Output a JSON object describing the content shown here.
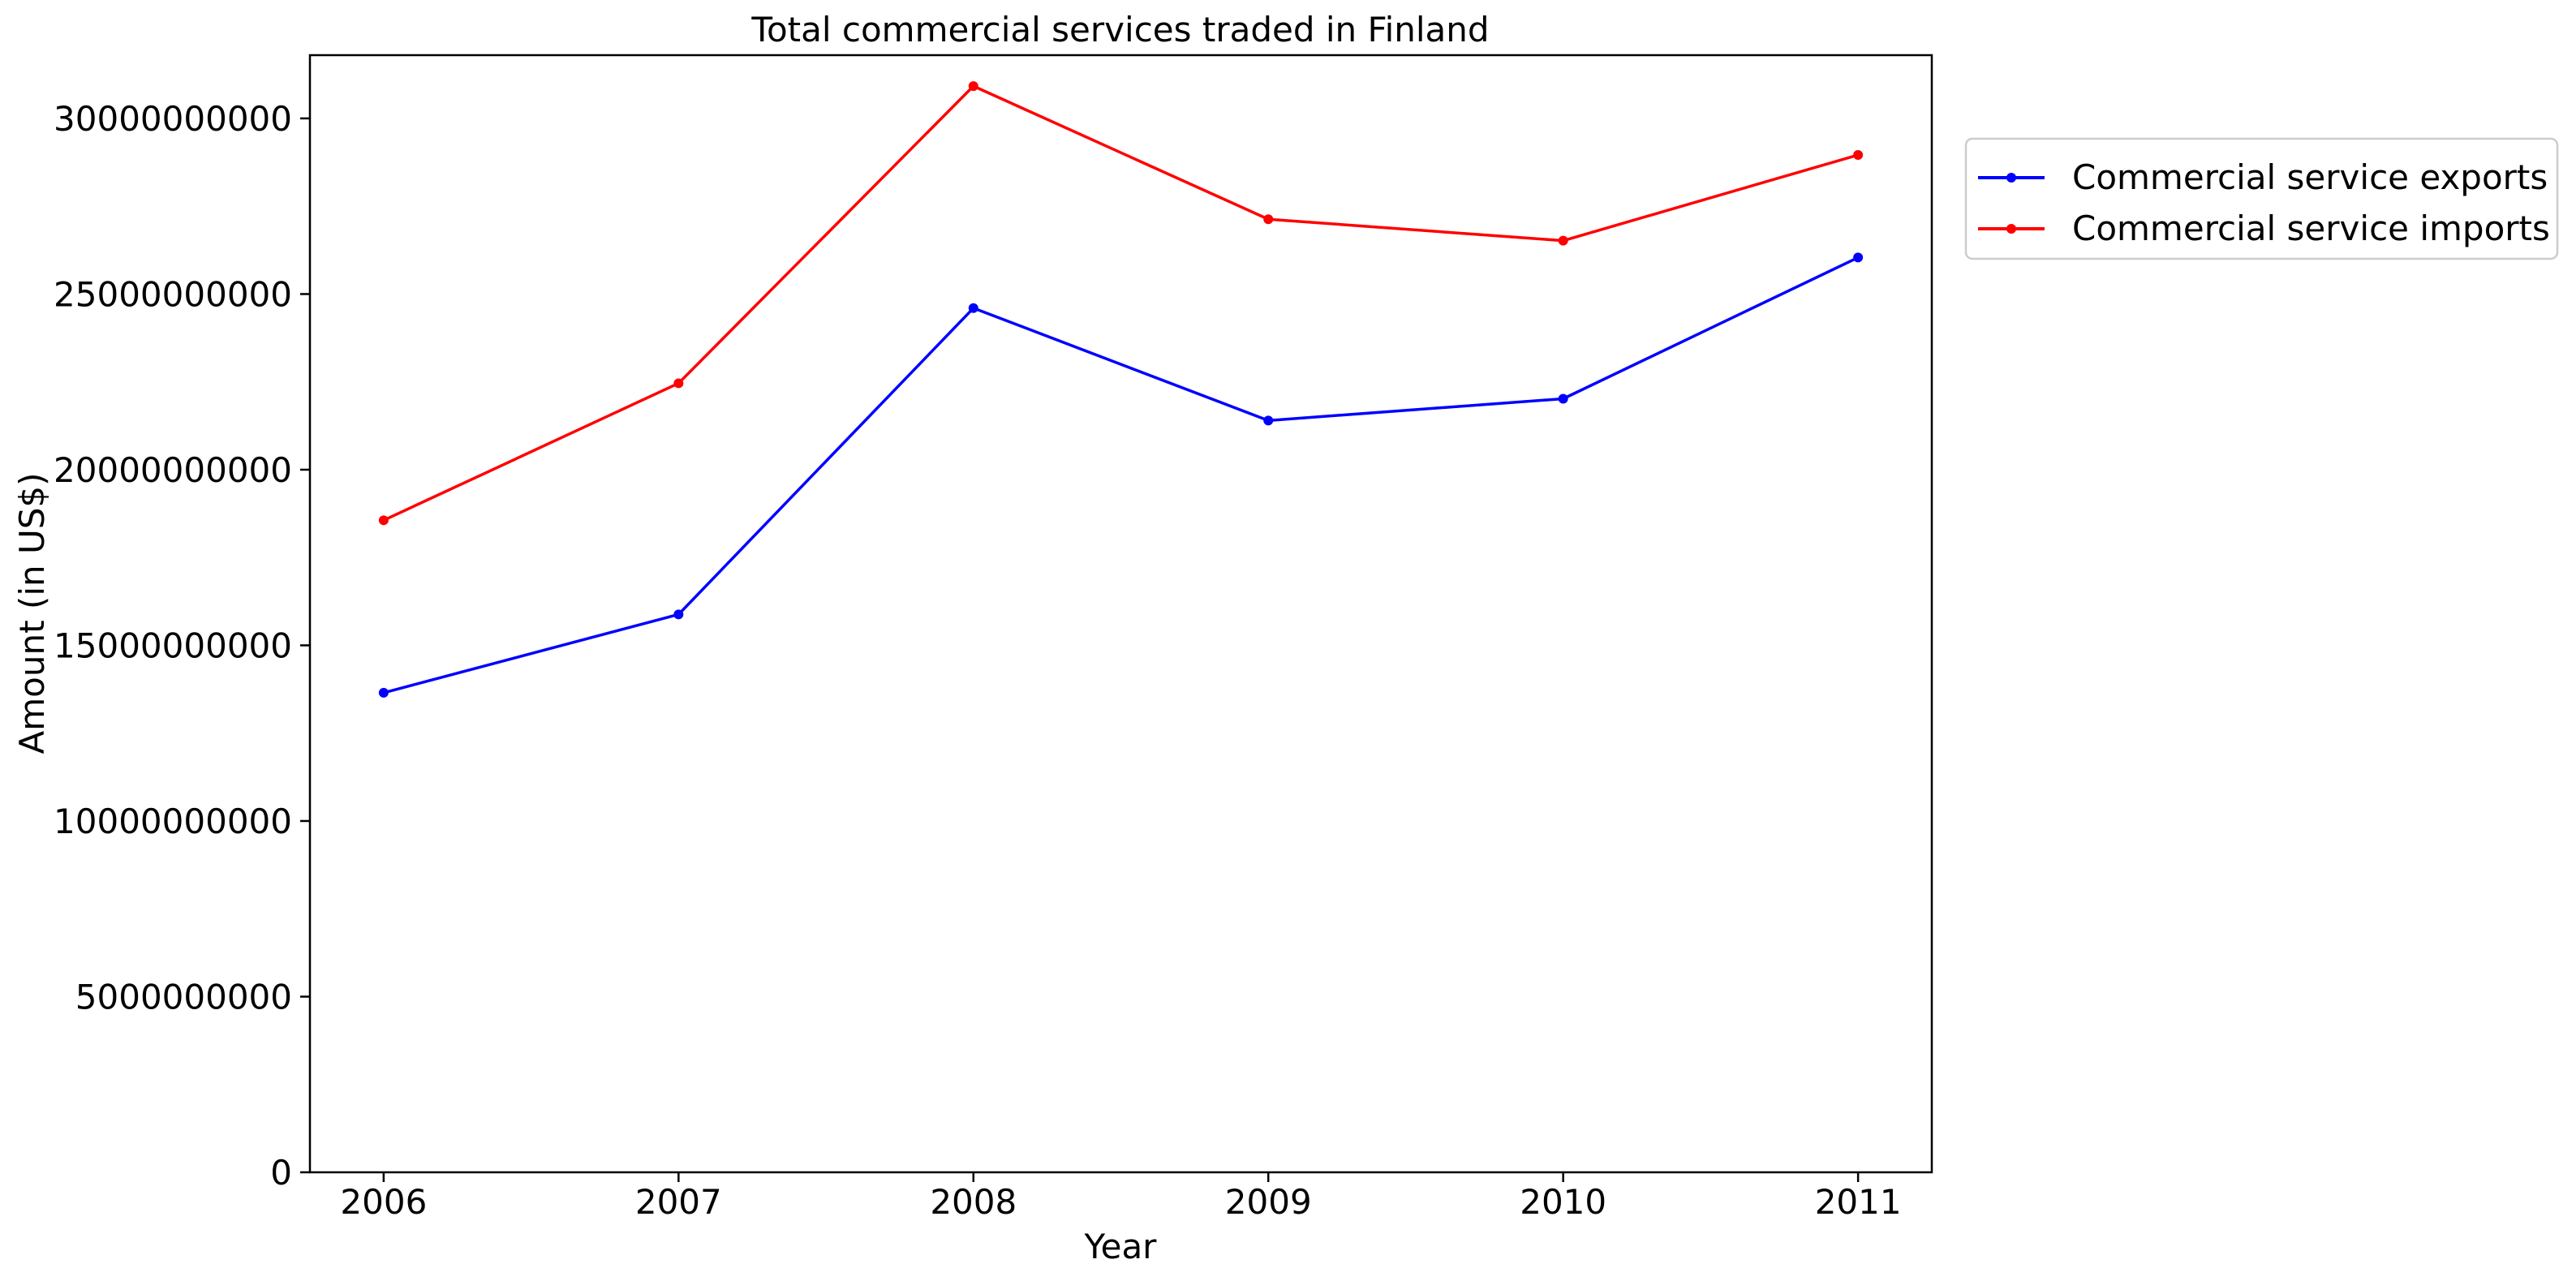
{
  "chart_data": {
    "type": "line",
    "title": "Total commercial services traded in Finland",
    "xlabel": "Year",
    "ylabel": "Amount (in US$)",
    "x": [
      2006,
      2007,
      2008,
      2009,
      2010,
      2011
    ],
    "xlim": [
      2005.75,
      2011.25
    ],
    "ylim": [
      0,
      31800000000
    ],
    "yticks": [
      0,
      5000000000,
      10000000000,
      15000000000,
      20000000000,
      25000000000,
      30000000000
    ],
    "ytick_labels": [
      "0",
      "5000000000",
      "10000000000",
      "15000000000",
      "20000000000",
      "25000000000",
      "30000000000"
    ],
    "grid": false,
    "legend_position": "outside upper right",
    "series": [
      {
        "name": "Commercial service exports",
        "color": "#0000ff",
        "marker": "dot",
        "values": [
          13650000000,
          15880000000,
          24600000000,
          21400000000,
          22020000000,
          26040000000
        ]
      },
      {
        "name": "Commercial service imports",
        "color": "#ff0000",
        "marker": "dot",
        "values": [
          18560000000,
          22460000000,
          30920000000,
          27130000000,
          26520000000,
          28960000000
        ]
      }
    ]
  }
}
